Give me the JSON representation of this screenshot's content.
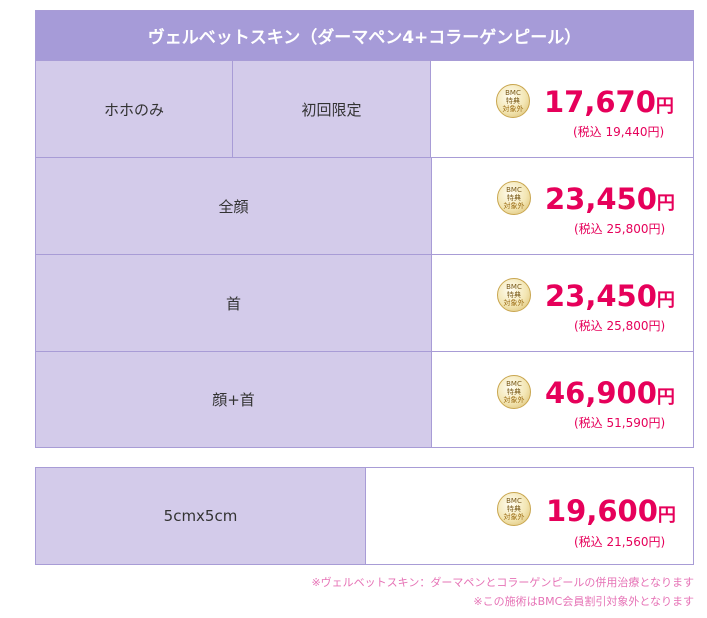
{
  "header": {
    "title": "ヴェルベットスキン（ダーマペン4+コラーゲンピール）"
  },
  "badge": {
    "line1": "BMC",
    "line2": "特典",
    "line3": "対象外"
  },
  "rows": [
    {
      "label": "ホホのみ",
      "sublabel": "初回限定",
      "amount": "17,670",
      "yen": "円",
      "tax": "(税込 19,440円)"
    },
    {
      "label": "全顔",
      "amount": "23,450",
      "yen": "円",
      "tax": "(税込 25,800円)"
    },
    {
      "label": "首",
      "amount": "23,450",
      "yen": "円",
      "tax": "(税込 25,800円)"
    },
    {
      "label": "顔+首",
      "amount": "46,900",
      "yen": "円",
      "tax": "(税込 51,590円)"
    }
  ],
  "extra": {
    "label": "5cmx5cm",
    "amount": "19,600",
    "yen": "円",
    "tax": "(税込 21,560円)"
  },
  "notes": [
    "※ヴェルベットスキン：ダーマペンとコラーゲンピールの併用治療となります",
    "※この施術はBMC会員割引対象外となります"
  ]
}
